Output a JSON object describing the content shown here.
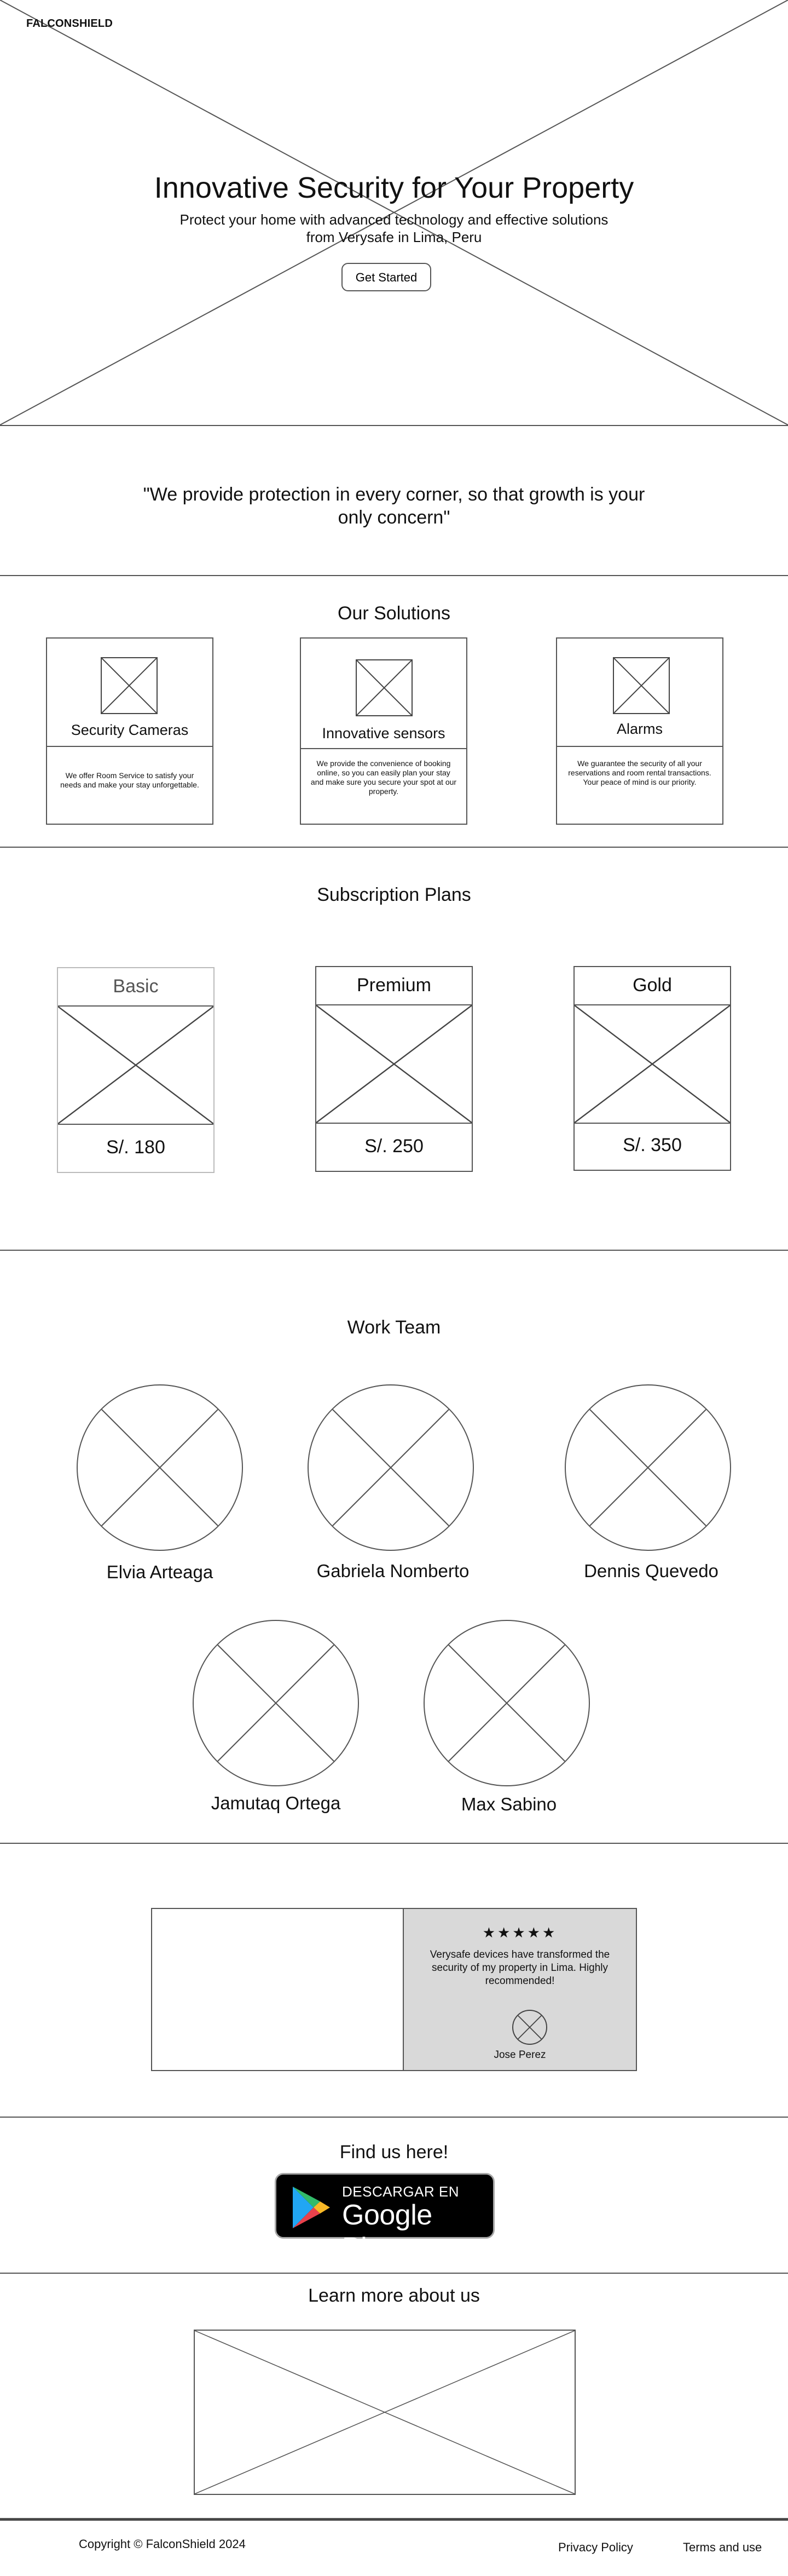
{
  "header": {
    "logo": "FALCONSHIELD"
  },
  "hero": {
    "title": "Innovative Security for Your Property",
    "subtitle": "Protect your home with advanced technology and effective solutions from Verysafe in Lima, Peru",
    "cta_label": "Get Started"
  },
  "quote": {
    "text": "\"We provide protection in every corner, so that growth is your only concern\""
  },
  "solutions": {
    "title": "Our Solutions",
    "items": [
      {
        "name": "Security Cameras",
        "description": "We offer Room Service to satisfy your needs and make your stay unforgettable."
      },
      {
        "name": "Innovative sensors",
        "description": "We provide the convenience of booking online, so you can easily plan your stay and make sure you secure your spot at our property."
      },
      {
        "name": "Alarms",
        "description": "We guarantee the security of all your reservations and room rental transactions. Your peace of mind is our priority."
      }
    ]
  },
  "plans": {
    "title": "Subscription Plans",
    "items": [
      {
        "name": "Basic",
        "price": "S/. 180"
      },
      {
        "name": "Premium",
        "price": "S/. 250"
      },
      {
        "name": "Gold",
        "price": "S/. 350"
      }
    ]
  },
  "team": {
    "title": "Work Team",
    "members": [
      {
        "name": "Elvia Arteaga"
      },
      {
        "name": "Gabriela Nomberto"
      },
      {
        "name": "Dennis Quevedo"
      },
      {
        "name": "Jamutaq Ortega"
      },
      {
        "name": "Max Sabino"
      }
    ]
  },
  "testimonial": {
    "stars": "★★★★★",
    "rating": 5,
    "text": "Verysafe devices have transformed the security of my property in Lima. Highly recommended!",
    "author": "Jose Perez"
  },
  "find_us": {
    "title": "Find us here!",
    "badge_small": "DESCARGAR EN",
    "badge_big": "Google Play"
  },
  "learn_more": {
    "title": "Learn more about us"
  },
  "footer": {
    "copyright": "Copyright © FalconShield 2024",
    "privacy": "Privacy Policy",
    "terms": "Terms and use"
  },
  "colors": {
    "placeholder_stroke": "#555555",
    "testimonial_panel": "#d9d9d9",
    "badge_background": "#000000"
  }
}
